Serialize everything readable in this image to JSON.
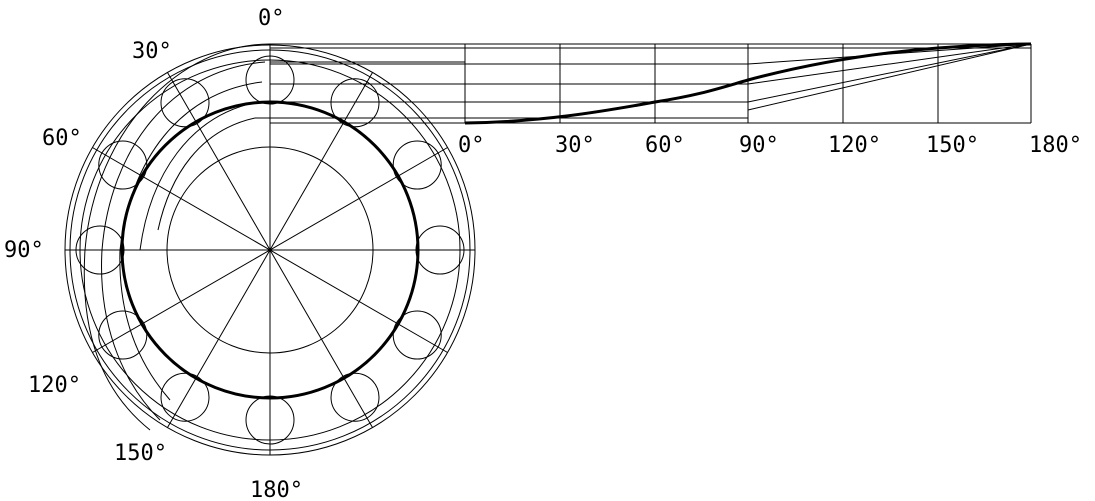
{
  "diagram": {
    "ink": "#000000",
    "background": "#ffffff",
    "circle_angle_labels": [
      "0°",
      "30°",
      "60°",
      "90°",
      "120°",
      "150°",
      "180°"
    ],
    "axis_angle_labels": [
      "0°",
      "30°",
      "60°",
      "90°",
      "120°",
      "150°",
      "180°"
    ],
    "roller_count": 12
  }
}
